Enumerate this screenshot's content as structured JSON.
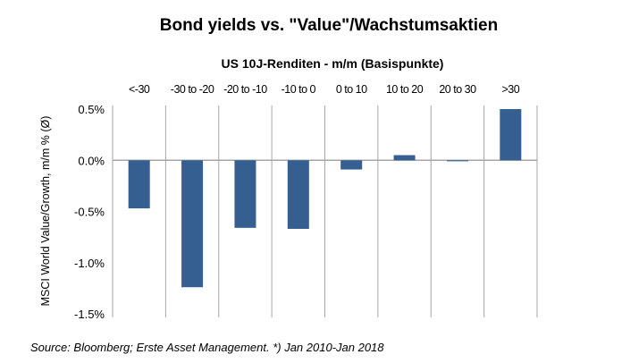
{
  "chart_data": {
    "type": "bar",
    "title": "Bond yields  vs. \"Value\"/Wachstumsaktien",
    "xlabel": "US 10J-Renditen - m/m (Basispunkte)",
    "ylabel": "MSCI World Value/Growth, m/m % (Ø)",
    "categories": [
      "<-30",
      "-30 to -20",
      "-20 to -10",
      "-10 to 0",
      "0 to 10",
      "10 to 20",
      "20 to 30",
      ">30"
    ],
    "values": [
      -0.47,
      -1.24,
      -0.66,
      -0.67,
      -0.09,
      0.05,
      -0.01,
      0.5
    ],
    "ylim": [
      -1.5,
      0.5
    ],
    "yticks": [
      0.5,
      0.0,
      -0.5,
      -1.0,
      -1.5
    ],
    "ytick_labels": [
      "0.5%",
      "0.0%",
      "-0.5%",
      "-1.0%",
      "-1.5%"
    ],
    "bar_color": "#355F91",
    "grid": "vertical category separators",
    "source": "Source: Bloomberg; Erste Asset Management. *) Jan 2010-Jan 2018"
  }
}
